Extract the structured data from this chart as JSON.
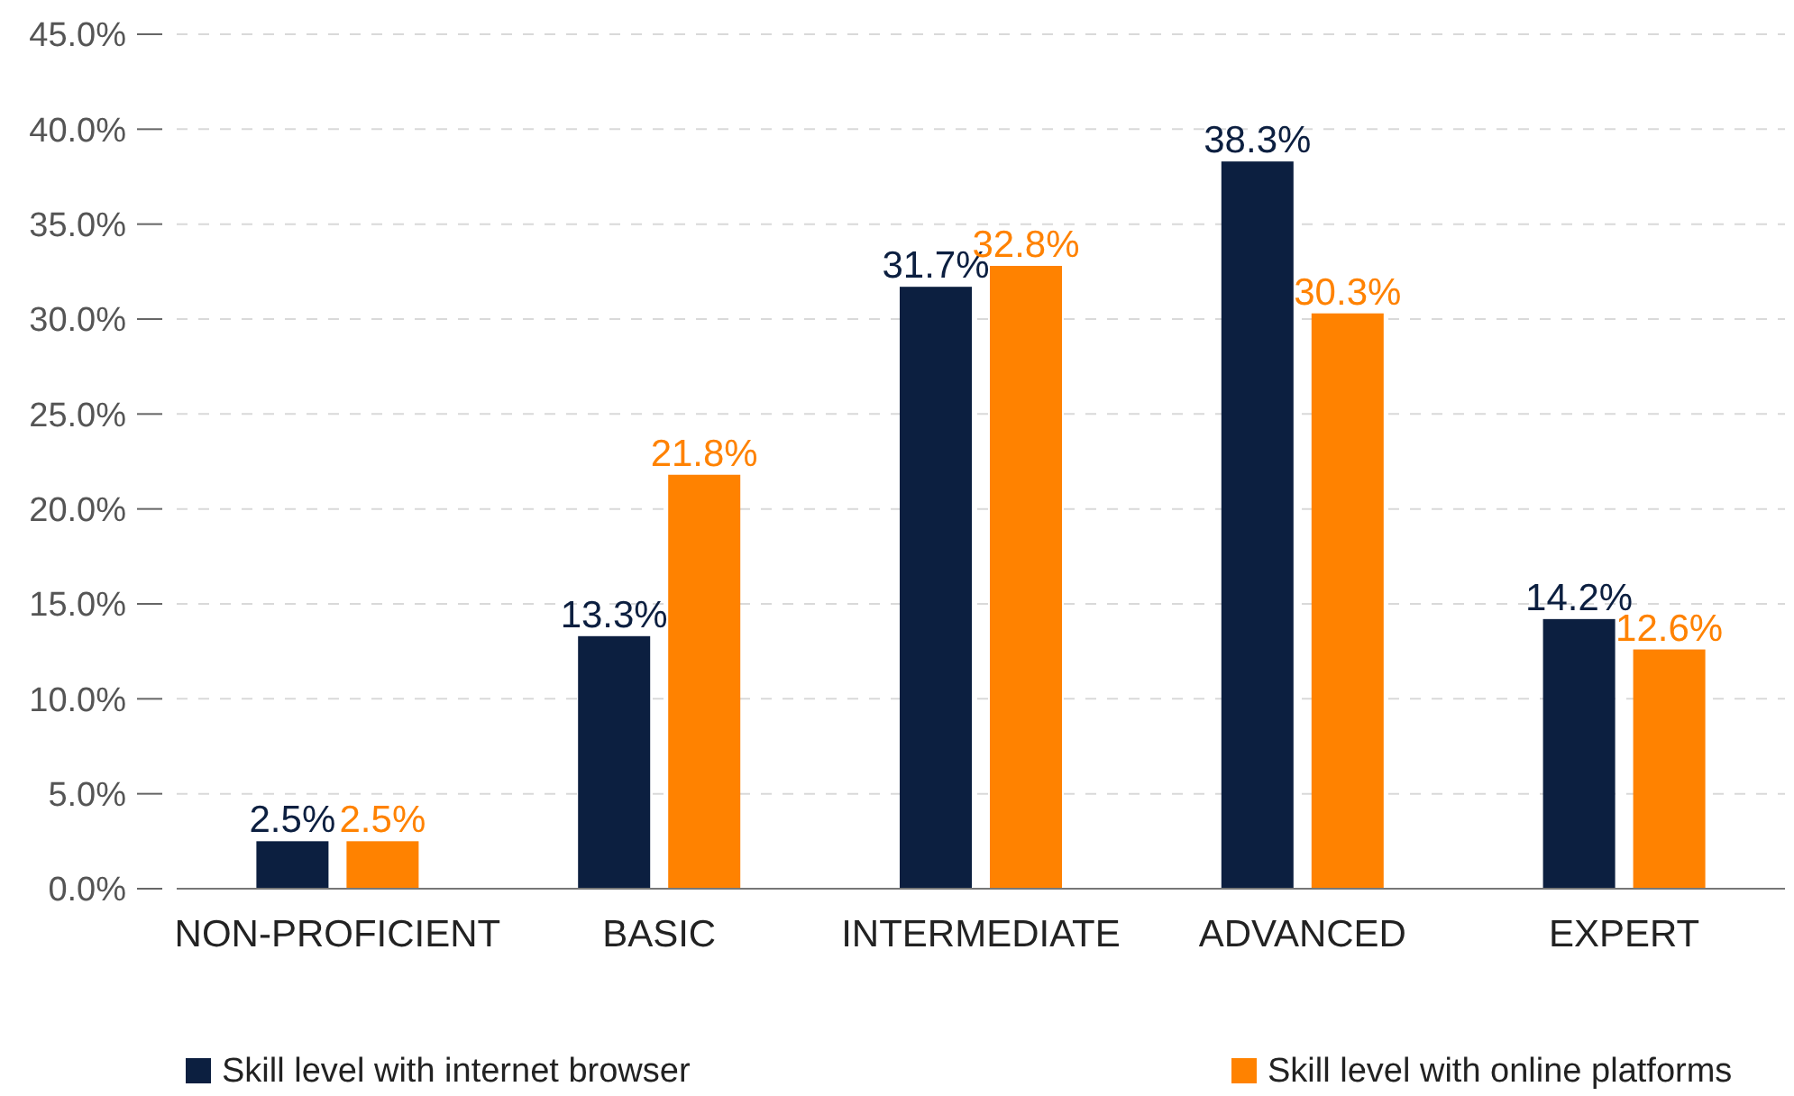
{
  "chart_data": {
    "type": "bar",
    "categories": [
      "NON-PROFICIENT",
      "BASIC",
      "INTERMEDIATE",
      "ADVANCED",
      "EXPERT"
    ],
    "series": [
      {
        "name": "Skill level with internet browser",
        "color": "#0c1f40",
        "values": [
          2.5,
          13.3,
          31.7,
          38.3,
          14.2
        ],
        "value_labels": [
          "2.5%",
          "13.3%",
          "31.7%",
          "38.3%",
          "14.2%"
        ]
      },
      {
        "name": "Skill level with online platforms",
        "color": "#ff8200",
        "values": [
          2.5,
          21.8,
          32.8,
          30.3,
          12.6
        ],
        "value_labels": [
          "2.5%",
          "21.8%",
          "32.8%",
          "30.3%",
          "12.6%"
        ]
      }
    ],
    "ylim": [
      0,
      45
    ],
    "yticks": [
      {
        "value": 0,
        "label": "0.0%"
      },
      {
        "value": 5,
        "label": "5.0%"
      },
      {
        "value": 10,
        "label": "10.0%"
      },
      {
        "value": 15,
        "label": "15.0%"
      },
      {
        "value": 20,
        "label": "20.0%"
      },
      {
        "value": 25,
        "label": "25.0%"
      },
      {
        "value": 30,
        "label": "30.0%"
      },
      {
        "value": 35,
        "label": "35.0%"
      },
      {
        "value": 40,
        "label": "40.0%"
      },
      {
        "value": 45,
        "label": "45.0%"
      }
    ],
    "grid": "y",
    "legend": "bottom"
  }
}
